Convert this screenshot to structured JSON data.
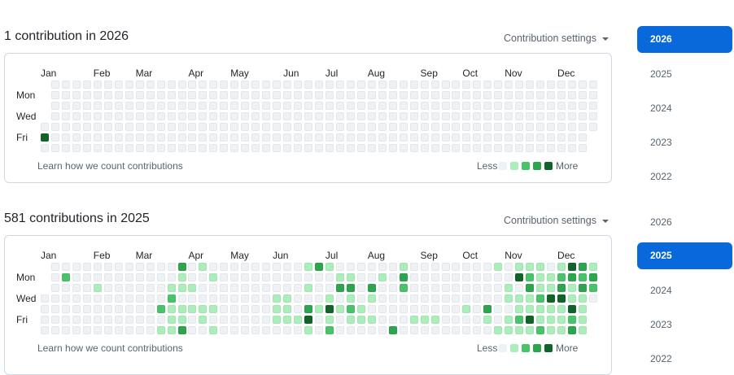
{
  "sections": [
    {
      "title": "1 contribution in 2026",
      "settings_label": "Contribution settings",
      "months": [
        {
          "label": "Jan",
          "week": 0
        },
        {
          "label": "Feb",
          "week": 5
        },
        {
          "label": "Mar",
          "week": 9
        },
        {
          "label": "Apr",
          "week": 14
        },
        {
          "label": "May",
          "week": 18
        },
        {
          "label": "Jun",
          "week": 23
        },
        {
          "label": "Jul",
          "week": 27
        },
        {
          "label": "Aug",
          "week": 31
        },
        {
          "label": "Sep",
          "week": 36
        },
        {
          "label": "Oct",
          "week": 40
        },
        {
          "label": "Nov",
          "week": 44
        },
        {
          "label": "Dec",
          "week": 49
        }
      ],
      "day_labels": {
        "mon": "Mon",
        "wed": "Wed",
        "fri": "Fri"
      },
      "weeks": 53,
      "start_day": 4,
      "end_day": 4,
      "active": [
        [
          0,
          5,
          4
        ]
      ],
      "learn_text": "Learn how we count contributions",
      "legend": {
        "less": "Less",
        "more": "More"
      }
    },
    {
      "title": "581 contributions in 2025",
      "settings_label": "Contribution settings",
      "months": [
        {
          "label": "Jan",
          "week": 0
        },
        {
          "label": "Feb",
          "week": 5
        },
        {
          "label": "Mar",
          "week": 9
        },
        {
          "label": "Apr",
          "week": 14
        },
        {
          "label": "May",
          "week": 18
        },
        {
          "label": "Jun",
          "week": 22
        },
        {
          "label": "Jul",
          "week": 27
        },
        {
          "label": "Aug",
          "week": 31
        },
        {
          "label": "Sep",
          "week": 36
        },
        {
          "label": "Oct",
          "week": 40
        },
        {
          "label": "Nov",
          "week": 44
        },
        {
          "label": "Dec",
          "week": 49
        }
      ],
      "day_labels": {
        "mon": "Mon",
        "wed": "Wed",
        "fri": "Fri"
      },
      "weeks": 53,
      "start_day": 3,
      "end_day": 3,
      "active": [
        [
          2,
          1,
          2
        ],
        [
          5,
          2,
          1
        ],
        [
          11,
          4,
          2
        ],
        [
          11,
          6,
          1
        ],
        [
          12,
          2,
          1
        ],
        [
          12,
          3,
          2
        ],
        [
          12,
          4,
          1
        ],
        [
          12,
          5,
          1
        ],
        [
          12,
          6,
          1
        ],
        [
          13,
          0,
          3
        ],
        [
          13,
          1,
          1
        ],
        [
          13,
          2,
          1
        ],
        [
          13,
          4,
          1
        ],
        [
          13,
          5,
          1
        ],
        [
          13,
          6,
          3
        ],
        [
          14,
          2,
          1
        ],
        [
          14,
          4,
          1
        ],
        [
          15,
          0,
          1
        ],
        [
          15,
          4,
          1
        ],
        [
          15,
          5,
          1
        ],
        [
          16,
          1,
          1
        ],
        [
          16,
          4,
          1
        ],
        [
          16,
          6,
          1
        ],
        [
          22,
          3,
          1
        ],
        [
          22,
          4,
          1
        ],
        [
          22,
          5,
          1
        ],
        [
          23,
          3,
          1
        ],
        [
          23,
          4,
          1
        ],
        [
          23,
          5,
          1
        ],
        [
          24,
          5,
          1
        ],
        [
          25,
          0,
          1
        ],
        [
          25,
          2,
          1
        ],
        [
          25,
          4,
          3
        ],
        [
          25,
          5,
          4
        ],
        [
          25,
          6,
          1
        ],
        [
          26,
          0,
          3
        ],
        [
          26,
          4,
          1
        ],
        [
          27,
          0,
          1
        ],
        [
          27,
          3,
          1
        ],
        [
          27,
          4,
          4
        ],
        [
          27,
          5,
          1
        ],
        [
          27,
          6,
          2
        ],
        [
          28,
          1,
          1
        ],
        [
          28,
          2,
          3
        ],
        [
          28,
          4,
          1
        ],
        [
          29,
          1,
          1
        ],
        [
          29,
          2,
          3
        ],
        [
          29,
          3,
          1
        ],
        [
          29,
          4,
          2
        ],
        [
          29,
          5,
          1
        ],
        [
          30,
          4,
          1
        ],
        [
          30,
          5,
          1
        ],
        [
          31,
          2,
          3
        ],
        [
          31,
          3,
          1
        ],
        [
          31,
          5,
          1
        ],
        [
          32,
          1,
          1
        ],
        [
          33,
          6,
          3
        ],
        [
          34,
          0,
          1
        ],
        [
          34,
          1,
          3
        ],
        [
          34,
          2,
          2
        ],
        [
          35,
          5,
          1
        ],
        [
          36,
          5,
          1
        ],
        [
          37,
          5,
          1
        ],
        [
          40,
          4,
          1
        ],
        [
          42,
          4,
          3
        ],
        [
          42,
          5,
          1
        ],
        [
          43,
          0,
          1
        ],
        [
          43,
          6,
          1
        ],
        [
          44,
          2,
          1
        ],
        [
          44,
          3,
          1
        ],
        [
          44,
          5,
          1
        ],
        [
          44,
          6,
          1
        ],
        [
          45,
          0,
          1
        ],
        [
          45,
          1,
          4
        ],
        [
          45,
          3,
          1
        ],
        [
          45,
          4,
          1
        ],
        [
          45,
          5,
          2
        ],
        [
          45,
          6,
          1
        ],
        [
          46,
          0,
          1
        ],
        [
          46,
          1,
          2
        ],
        [
          46,
          2,
          3
        ],
        [
          46,
          3,
          1
        ],
        [
          46,
          4,
          1
        ],
        [
          46,
          5,
          4
        ],
        [
          46,
          6,
          1
        ],
        [
          47,
          0,
          1
        ],
        [
          47,
          1,
          1
        ],
        [
          47,
          2,
          1
        ],
        [
          47,
          3,
          2
        ],
        [
          47,
          4,
          1
        ],
        [
          47,
          5,
          1
        ],
        [
          47,
          6,
          2
        ],
        [
          48,
          1,
          1
        ],
        [
          48,
          2,
          1
        ],
        [
          48,
          3,
          4
        ],
        [
          48,
          4,
          1
        ],
        [
          48,
          5,
          1
        ],
        [
          48,
          6,
          1
        ],
        [
          49,
          0,
          1
        ],
        [
          49,
          1,
          2
        ],
        [
          49,
          2,
          3
        ],
        [
          49,
          3,
          4
        ],
        [
          49,
          4,
          1
        ],
        [
          49,
          5,
          1
        ],
        [
          49,
          6,
          1
        ],
        [
          50,
          0,
          4
        ],
        [
          50,
          1,
          3
        ],
        [
          50,
          2,
          1
        ],
        [
          50,
          3,
          1
        ],
        [
          50,
          4,
          4
        ],
        [
          50,
          5,
          2
        ],
        [
          50,
          6,
          3
        ],
        [
          51,
          0,
          3
        ],
        [
          51,
          1,
          2
        ],
        [
          51,
          2,
          3
        ],
        [
          51,
          3,
          1
        ],
        [
          51,
          4,
          1
        ],
        [
          51,
          5,
          1
        ],
        [
          51,
          6,
          1
        ],
        [
          52,
          0,
          1
        ],
        [
          52,
          1,
          3
        ],
        [
          52,
          2,
          2
        ]
      ],
      "learn_text": "Learn how we count contributions",
      "legend": {
        "less": "Less",
        "more": "More"
      }
    }
  ],
  "year_nav": [
    {
      "years": [
        "2026",
        "2025",
        "2024",
        "2023",
        "2022"
      ],
      "selected": "2026"
    },
    {
      "years": [
        "2026",
        "2025",
        "2024",
        "2023",
        "2022"
      ],
      "selected": "2025"
    }
  ],
  "colors": {
    "level0": "#eff2f5",
    "level1": "#aceebb",
    "level2": "#4ac26b",
    "level3": "#2da44e",
    "level4": "#116329",
    "accent": "#0969da"
  }
}
